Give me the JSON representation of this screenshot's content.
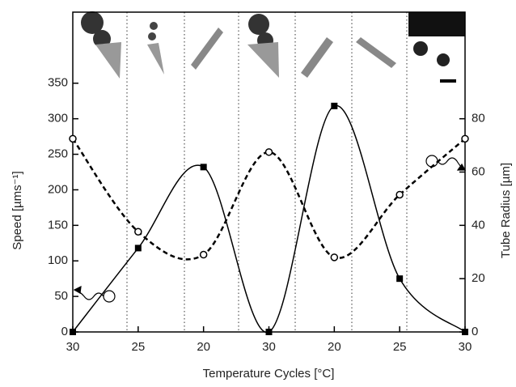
{
  "chart_data": {
    "type": "line",
    "x_label": "Temperature Cycles [°C]",
    "y_label": "Speed [µms⁻¹]",
    "y2_label": "Tube Radius [µm]",
    "categories": [
      "30",
      "25",
      "20",
      "30",
      "20",
      "25",
      "30"
    ],
    "series": [
      {
        "color": "#000000",
        "values": [
          0,
          118,
          232,
          0,
          318,
          75,
          0
        ]
      },
      {
        "color": "#000000",
        "axis": "y2",
        "values": [
          72.5,
          37.6,
          29,
          67.5,
          28,
          51.5,
          72.5
        ]
      }
    ],
    "ylim": [
      0,
      450
    ],
    "yticks": [
      0,
      50,
      100,
      150,
      200,
      250,
      300,
      350
    ],
    "y2lim": [
      0,
      120
    ],
    "y2ticks": [
      0,
      20,
      40,
      60,
      80
    ]
  }
}
